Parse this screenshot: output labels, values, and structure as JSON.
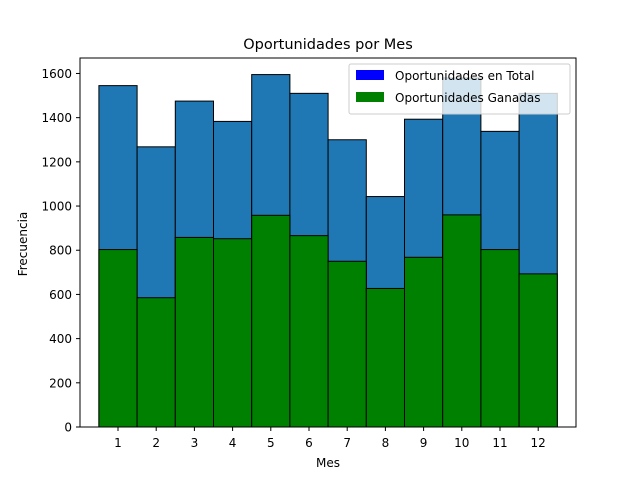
{
  "chart_data": {
    "type": "bar",
    "title": "Oportunidades por Mes",
    "xlabel": "Mes",
    "ylabel": "Frecuencia",
    "categories": [
      "1",
      "2",
      "3",
      "4",
      "5",
      "6",
      "7",
      "8",
      "9",
      "10",
      "11",
      "12"
    ],
    "ylim": [
      0,
      1670
    ],
    "yticks": [
      0,
      200,
      400,
      600,
      800,
      1000,
      1200,
      1400,
      1600
    ],
    "series": [
      {
        "name": "Oportunidades en Total",
        "legend_color": "#0000ff",
        "color": "#1f77b4",
        "values": [
          1545,
          1268,
          1475,
          1383,
          1595,
          1510,
          1300,
          1043,
          1393,
          1580,
          1338,
          1510
        ]
      },
      {
        "name": "Oportunidades Ganadas",
        "legend_color": "#008000",
        "color": "#008000",
        "values": [
          803,
          585,
          858,
          852,
          958,
          866,
          750,
          627,
          768,
          960,
          803,
          693
        ]
      }
    ],
    "legend_position": "top-right",
    "grid": false
  }
}
